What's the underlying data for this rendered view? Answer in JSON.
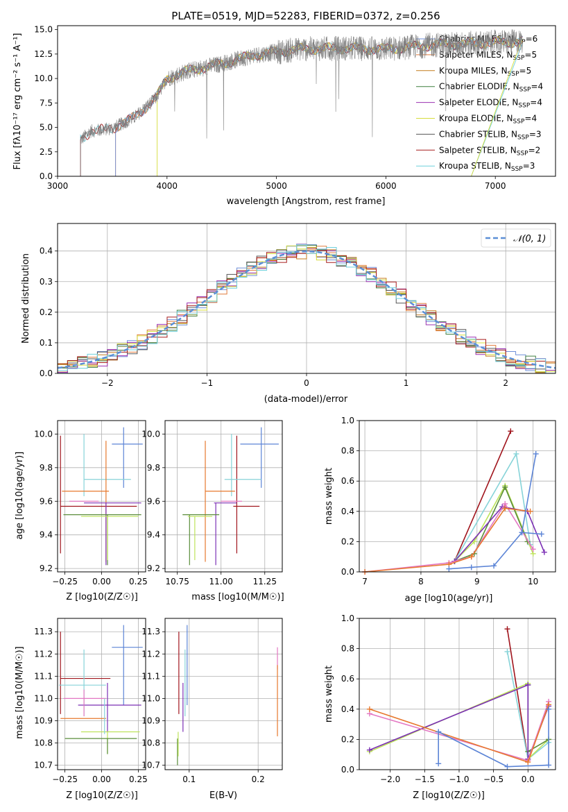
{
  "figure": {
    "title": "PLATE=0519, MJD=52283, FIBERID=0372, z=0.256"
  },
  "colors": {
    "Chabrier MILES": "#6f8fd8",
    "Salpeter MILES": "#e07a3a",
    "Kroupa MILES": "#c47a1a",
    "Chabrier ELODIE": "#3f7f3f",
    "Salpeter ELODIE": "#9a2fb0",
    "Kroupa ELODIE": "#d6dc3a",
    "Chabrier STELIB": "#555555",
    "Salpeter STELIB": "#a61c1c",
    "Kroupa STELIB": "#6fd0dc",
    "data": "#808080",
    "pink": "#e377c2",
    "lime": "#bde35a",
    "blue": "#5b84d6",
    "orange": "#e7782d",
    "darkred": "#a0141c",
    "cyan": "#86d3d8",
    "purple": "#7b2fb5",
    "olive": "#5a8d3a",
    "gaussian": "#5b8fd6"
  },
  "chart_data": [
    {
      "id": "spectrum",
      "type": "line",
      "xlabel": "wavelength [Angstrom, rest frame]",
      "ylabel": "Flux [fλ10⁻¹⁷ erg cm⁻² s⁻¹ A⁻¹]",
      "xlim": [
        3000,
        7550
      ],
      "ylim": [
        0,
        15.4
      ],
      "xticks": [
        "3000",
        "4000",
        "5000",
        "6000",
        "7000"
      ],
      "yticks": [
        "0.0",
        "2.5",
        "5.0",
        "7.5",
        "10.0",
        "12.5",
        "15.0"
      ],
      "legend": [
        {
          "name": "Chabrier MILES, NSSP=6",
          "nssp": 6
        },
        {
          "name": "Salpeter MILES, NSSP=5",
          "nssp": 5
        },
        {
          "name": "Kroupa MILES, NSSP=5",
          "nssp": 5
        },
        {
          "name": "Chabrier ELODIE, NSSP=4",
          "nssp": 4
        },
        {
          "name": "Salpeter ELODIE, NSSP=4",
          "nssp": 4
        },
        {
          "name": "Kroupa ELODIE, NSSP=4",
          "nssp": 4
        },
        {
          "name": "Chabrier STELIB, NSSP=3",
          "nssp": 3
        },
        {
          "name": "Salpeter STELIB, NSSP=2",
          "nssp": 2
        },
        {
          "name": "Kroupa STELIB, NSSP=3",
          "nssp": 3
        }
      ],
      "legend_labels": {
        "l0a": "Chabrier MILES, N",
        "l1a": "Salpeter MILES, N",
        "l2a": "Kroupa MILES, N",
        "l3a": "Chabrier ELODIE, N",
        "l4a": "Salpeter ELODIE, N",
        "l5a": "Kroupa ELODIE, N",
        "l6a": "Chabrier STELIB, N",
        "l7a": "Salpeter STELIB, N",
        "l8a": "Kroupa STELIB, N",
        "sub": "SSP",
        "l0b": "=6",
        "l1b": "=5",
        "l2b": "=5",
        "l3b": "=4",
        "l4b": "=4",
        "l5b": "=4",
        "l6b": "=3",
        "l7b": "=2",
        "l8b": "=3"
      },
      "continuum": [
        [
          3220,
          3.8
        ],
        [
          3300,
          4.6
        ],
        [
          3500,
          4.9
        ],
        [
          3700,
          6.0
        ],
        [
          3900,
          8.0
        ],
        [
          4000,
          10.0
        ],
        [
          4200,
          10.8
        ],
        [
          4500,
          11.5
        ],
        [
          4800,
          12.4
        ],
        [
          5200,
          13.0
        ],
        [
          5600,
          13.1
        ],
        [
          6000,
          13.0
        ],
        [
          6400,
          13.4
        ],
        [
          6800,
          13.6
        ],
        [
          7300,
          13.8
        ]
      ],
      "model_starts": {
        "data": 3210,
        "miles": 3530,
        "elodie": 3910,
        "stelib": 3210
      },
      "model_end": 7250,
      "stelib_end_drop": 6780
    },
    {
      "id": "residuals",
      "type": "step-histogram",
      "xlabel": "(data-model)/error",
      "ylabel": "Normed distribution",
      "xlim": [
        -2.5,
        2.5
      ],
      "ylim": [
        0,
        0.49
      ],
      "xticks": [
        "−2",
        "−1",
        "0",
        "1",
        "2"
      ],
      "yticks": [
        "0.0",
        "0.1",
        "0.2",
        "0.3",
        "0.4"
      ],
      "grid": true,
      "legend": "𝒩(0, 1)",
      "bin_width": 0.1,
      "gaussian": {
        "mu": 0,
        "sigma": 1
      }
    },
    {
      "id": "age-vs-Z",
      "type": "errorbar",
      "xlabel": "Z [log10(Z/Z☉)]",
      "ylabel": "age  [log10(age/yr)]",
      "xlim": [
        -0.3,
        0.3
      ],
      "ylim": [
        9.18,
        10.08
      ],
      "xticks": [
        "−0.25",
        "0.00",
        "0.25"
      ],
      "yticks": [
        "9.2",
        "9.4",
        "9.6",
        "9.8",
        "10.0"
      ],
      "points": [
        {
          "c": "blue",
          "x": 0.15,
          "y": 9.94,
          "xe": [
            0.08,
            0.13
          ],
          "ye": [
            0.26,
            0.1
          ]
        },
        {
          "c": "darkred",
          "x": -0.28,
          "y": 9.57,
          "xe": [
            0.0,
            0.52
          ],
          "ye": [
            0.28,
            0.42
          ]
        },
        {
          "c": "cyan",
          "x": -0.12,
          "y": 9.73,
          "xe": [
            0.0,
            0.32
          ],
          "ye": [
            0.1,
            0.27
          ]
        },
        {
          "c": "pink",
          "x": -0.12,
          "y": 9.6,
          "xe": [
            0.1,
            0.1
          ],
          "ye": [
            0.0,
            0.0
          ]
        },
        {
          "c": "orange",
          "x": 0.03,
          "y": 9.66,
          "xe": [
            0.3,
            0.02
          ],
          "ye": [
            0.42,
            0.3
          ]
        },
        {
          "c": "purple",
          "x": 0.03,
          "y": 9.59,
          "xe": [
            0.15,
            0.24
          ],
          "ye": [
            0.37,
            0.0
          ]
        },
        {
          "c": "olive",
          "x": 0.04,
          "y": 9.52,
          "xe": [
            0.3,
            0.23
          ],
          "ye": [
            0.3,
            0.0
          ]
        },
        {
          "c": "lime",
          "x": 0.04,
          "y": 9.51,
          "xe": [
            0.18,
            0.21
          ],
          "ye": [
            0.26,
            0.0
          ]
        }
      ]
    },
    {
      "id": "age-vs-mass",
      "type": "errorbar",
      "xlabel": "mass [log10(M/M☉)]",
      "xlim": [
        10.68,
        11.35
      ],
      "ylim": [
        9.18,
        10.08
      ],
      "xticks": [
        "10.75",
        "11.00",
        "11.25"
      ],
      "yticks": [
        "9.2",
        "9.4",
        "9.6",
        "9.8",
        "10.0"
      ],
      "points": [
        {
          "c": "blue",
          "x": 11.23,
          "y": 9.94,
          "xe": [
            0.12,
            0.1
          ],
          "ye": [
            0.26,
            0.1
          ]
        },
        {
          "c": "darkred",
          "x": 11.09,
          "y": 9.57,
          "xe": [
            0.02,
            0.13
          ],
          "ye": [
            0.28,
            0.42
          ]
        },
        {
          "c": "cyan",
          "x": 11.06,
          "y": 9.73,
          "xe": [
            0.04,
            0.17
          ],
          "ye": [
            0.1,
            0.27
          ]
        },
        {
          "c": "pink",
          "x": 11.0,
          "y": 9.6,
          "xe": [
            0.0,
            0.12
          ],
          "ye": [
            0.0,
            0.0
          ]
        },
        {
          "c": "orange",
          "x": 10.91,
          "y": 9.66,
          "xe": [
            0.0,
            0.17
          ],
          "ye": [
            0.42,
            0.3
          ]
        },
        {
          "c": "purple",
          "x": 10.97,
          "y": 9.59,
          "xe": [
            0.01,
            0.12
          ],
          "ye": [
            0.37,
            0.0
          ]
        },
        {
          "c": "olive",
          "x": 10.82,
          "y": 9.52,
          "xe": [
            0.04,
            0.17
          ],
          "ye": [
            0.3,
            0.0
          ]
        },
        {
          "c": "lime",
          "x": 10.85,
          "y": 9.51,
          "xe": [
            0.04,
            0.1
          ],
          "ye": [
            0.26,
            0.0
          ]
        }
      ]
    },
    {
      "id": "mass-weight-vs-age",
      "type": "line",
      "xlabel": "age  [log10(age/yr)]",
      "ylabel": "mass weight",
      "xlim": [
        6.9,
        10.4
      ],
      "ylim": [
        0,
        1.0
      ],
      "xticks": [
        "7",
        "8",
        "9",
        "10"
      ],
      "yticks": [
        "0.0",
        "0.2",
        "0.4",
        "0.6",
        "0.8",
        "1.0"
      ],
      "grid": true,
      "series": [
        {
          "c": "darkred",
          "x": [
            8.6,
            9.6
          ],
          "y": [
            0.07,
            0.93
          ]
        },
        {
          "c": "cyan",
          "x": [
            8.6,
            9.7,
            9.95
          ],
          "y": [
            0.07,
            0.78,
            0.18
          ]
        },
        {
          "c": "lime",
          "x": [
            8.6,
            8.95,
            9.5,
            10.0
          ],
          "y": [
            0.07,
            0.2,
            0.57,
            0.12
          ]
        },
        {
          "c": "olive",
          "x": [
            8.6,
            8.95,
            9.5,
            9.9
          ],
          "y": [
            0.07,
            0.12,
            0.56,
            0.2
          ]
        },
        {
          "c": "purple",
          "x": [
            8.6,
            9.45,
            9.9,
            10.2
          ],
          "y": [
            0.07,
            0.43,
            0.4,
            0.13
          ]
        },
        {
          "c": "pink",
          "x": [
            7.0,
            8.5,
            8.9,
            9.5,
            10.0
          ],
          "y": [
            0.0,
            0.06,
            0.1,
            0.45,
            0.15
          ]
        },
        {
          "c": "orange",
          "x": [
            7.0,
            8.5,
            8.9,
            9.5,
            9.95
          ],
          "y": [
            0.0,
            0.05,
            0.1,
            0.42,
            0.4
          ]
        },
        {
          "c": "blue",
          "x": [
            8.5,
            8.9,
            9.3,
            9.8,
            10.15
          ],
          "y": [
            0.02,
            0.03,
            0.04,
            0.26,
            0.25
          ]
        },
        {
          "c": "blue",
          "x": [
            9.8,
            10.05
          ],
          "y": [
            0.26,
            0.78
          ]
        }
      ]
    },
    {
      "id": "mass-vs-Z",
      "type": "errorbar",
      "xlabel": "Z [log10(Z/Z☉)]",
      "ylabel": "mass [log10(M/M☉)]",
      "xlim": [
        -0.3,
        0.3
      ],
      "ylim": [
        10.68,
        11.36
      ],
      "xticks": [
        "−0.25",
        "0.00",
        "0.25"
      ],
      "yticks": [
        "10.7",
        "10.8",
        "10.9",
        "11.0",
        "11.1",
        "11.2",
        "11.3"
      ],
      "points": [
        {
          "c": "blue",
          "x": 0.15,
          "y": 11.23,
          "xe": [
            0.08,
            0.13
          ],
          "ye": [
            0.26,
            0.1
          ]
        },
        {
          "c": "darkred",
          "x": -0.28,
          "y": 11.09,
          "xe": [
            0.0,
            0.34
          ],
          "ye": [
            0.16,
            0.21
          ]
        },
        {
          "c": "cyan",
          "x": -0.12,
          "y": 11.06,
          "xe": [
            0.17,
            0.15
          ],
          "ye": [
            0.14,
            0.16
          ]
        },
        {
          "c": "pink",
          "x": -0.12,
          "y": 11.0,
          "xe": [
            0.14,
            0.15
          ],
          "ye": [
            0.0,
            0.0
          ]
        },
        {
          "c": "orange",
          "x": -0.12,
          "y": 10.91,
          "xe": [
            0.16,
            0.15
          ],
          "ye": [
            0.0,
            0.0
          ]
        },
        {
          "c": "purple",
          "x": 0.04,
          "y": 10.97,
          "xe": [
            0.2,
            0.23
          ],
          "ye": [
            0.12,
            0.1
          ]
        },
        {
          "c": "lime",
          "x": 0.04,
          "y": 10.85,
          "xe": [
            0.18,
            0.22
          ],
          "ye": [
            0.1,
            0.0
          ]
        },
        {
          "c": "olive",
          "x": 0.04,
          "y": 10.82,
          "xe": [
            0.29,
            0.2
          ],
          "ye": [
            0.07,
            0.0
          ]
        },
        {
          "c": "cyan",
          "x": 0.02,
          "y": 10.84,
          "xe": [
            0.0,
            0.0
          ],
          "ye": [
            0.0,
            0.16
          ]
        },
        {
          "c": "pink",
          "x": -0.12,
          "y": 10.92,
          "xe": [
            0.0,
            0.0
          ],
          "ye": [
            0.0,
            0.12
          ]
        }
      ]
    },
    {
      "id": "mass-vs-EBV",
      "type": "errorbar",
      "xlabel": "E(B-V)",
      "xlim": [
        0.065,
        0.235
      ],
      "ylim": [
        10.68,
        11.36
      ],
      "xticks": [
        "0.1",
        "0.2"
      ],
      "yticks": [
        "10.7",
        "10.8",
        "10.9",
        "11.0",
        "11.1",
        "11.2",
        "11.3"
      ],
      "points": [
        {
          "c": "darkred",
          "x": 0.085,
          "y": 11.09,
          "xe": [
            0.0,
            0.0
          ],
          "ye": [
            0.16,
            0.21
          ]
        },
        {
          "c": "olive",
          "x": 0.083,
          "y": 10.82,
          "xe": [
            0.0,
            0.0
          ],
          "ye": [
            0.12,
            0.0
          ]
        },
        {
          "c": "lime",
          "x": 0.084,
          "y": 10.85,
          "xe": [
            0.0,
            0.0
          ],
          "ye": [
            0.11,
            0.0
          ]
        },
        {
          "c": "blue",
          "x": 0.097,
          "y": 11.23,
          "xe": [
            0.0,
            0.0
          ],
          "ye": [
            0.26,
            0.1
          ]
        },
        {
          "c": "cyan",
          "x": 0.094,
          "y": 11.06,
          "xe": [
            0.0,
            0.0
          ],
          "ye": [
            0.14,
            0.16
          ]
        },
        {
          "c": "purple",
          "x": 0.091,
          "y": 10.97,
          "xe": [
            0.0,
            0.0
          ],
          "ye": [
            0.12,
            0.1
          ]
        },
        {
          "c": "pink",
          "x": 0.228,
          "y": 11.13,
          "xe": [
            0.0,
            0.0
          ],
          "ye": [
            0.0,
            0.1
          ]
        },
        {
          "c": "orange",
          "x": 0.228,
          "y": 10.99,
          "xe": [
            0.0,
            0.0
          ],
          "ye": [
            0.16,
            0.16
          ]
        }
      ]
    },
    {
      "id": "mass-weight-vs-Z",
      "type": "line",
      "xlabel": "Z [log10(Z/Z☉)]",
      "ylabel": "mass weight",
      "xlim": [
        -2.45,
        0.4
      ],
      "ylim": [
        0,
        1.0
      ],
      "xticks": [
        "−2.0",
        "−1.5",
        "−1.0",
        "−0.5",
        "0.0"
      ],
      "yticks": [
        "0.0",
        "0.2",
        "0.4",
        "0.6",
        "0.8",
        "1.0"
      ],
      "grid": true,
      "series": [
        {
          "c": "darkred",
          "x": [
            -0.3,
            0.0
          ],
          "y": [
            0.93,
            0.07
          ]
        },
        {
          "c": "cyan",
          "x": [
            -0.3,
            0.0,
            0.3
          ],
          "y": [
            0.78,
            0.07,
            0.18
          ]
        },
        {
          "c": "lime",
          "x": [
            -2.3,
            0.0,
            0.0,
            0.3
          ],
          "y": [
            0.12,
            0.57,
            0.07,
            0.2
          ]
        },
        {
          "c": "olive",
          "x": [
            0.0,
            0.0,
            0.3
          ],
          "y": [
            0.56,
            0.12,
            0.2
          ]
        },
        {
          "c": "purple",
          "x": [
            -2.3,
            0.0,
            0.0,
            0.3
          ],
          "y": [
            0.13,
            0.56,
            0.07,
            0.42
          ]
        },
        {
          "c": "pink",
          "x": [
            -2.3,
            0.0,
            0.3
          ],
          "y": [
            0.37,
            0.06,
            0.45
          ]
        },
        {
          "c": "orange",
          "x": [
            -2.3,
            0.0,
            0.3
          ],
          "y": [
            0.4,
            0.05,
            0.43
          ]
        },
        {
          "c": "blue",
          "x": [
            -1.3,
            -0.3,
            0.3,
            0.3
          ],
          "y": [
            0.25,
            0.02,
            0.03,
            0.4
          ]
        },
        {
          "c": "blue",
          "x": [
            -1.3,
            -1.3
          ],
          "y": [
            0.25,
            0.04
          ]
        }
      ]
    }
  ]
}
